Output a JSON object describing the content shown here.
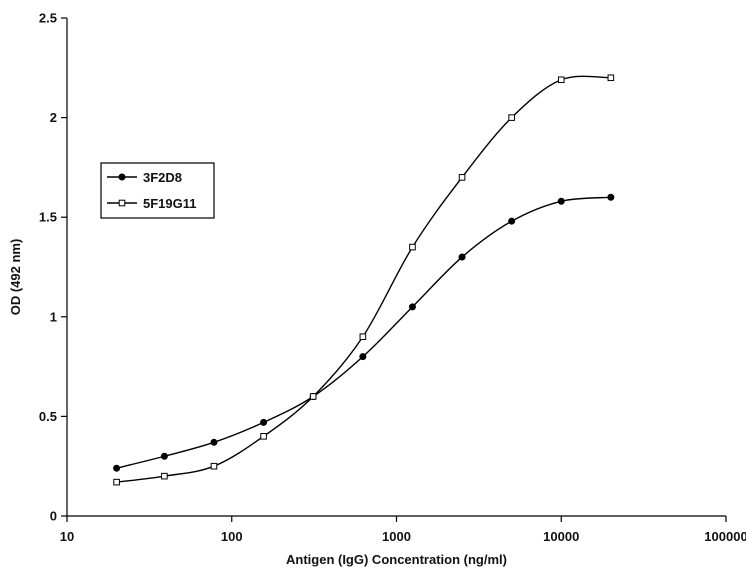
{
  "chart_data": {
    "type": "line",
    "x_scale": "log",
    "xlim": [
      10,
      100000
    ],
    "ylim": [
      0,
      2.5
    ],
    "x_ticks": [
      "10",
      "100",
      "1000",
      "10000",
      "100000"
    ],
    "y_ticks": [
      "0",
      "0.5",
      "1",
      "1.5",
      "2",
      "2.5"
    ],
    "xlabel": "Antigen (IgG) Concentration (ng/ml)",
    "ylabel": "OD (492 nm)",
    "grid": false,
    "legend_placement": "left",
    "series": [
      {
        "name": "3F2D8",
        "marker": "filled-circle",
        "color": "#000000",
        "x": [
          20,
          39,
          78,
          156,
          312,
          625,
          1250,
          2500,
          5000,
          10000,
          20000
        ],
        "y": [
          0.24,
          0.3,
          0.37,
          0.47,
          0.6,
          0.8,
          1.05,
          1.3,
          1.48,
          1.58,
          1.6
        ]
      },
      {
        "name": "5F19G11",
        "marker": "open-square",
        "color": "#000000",
        "x": [
          20,
          39,
          78,
          156,
          312,
          625,
          1250,
          2500,
          5000,
          10000,
          20000
        ],
        "y": [
          0.17,
          0.2,
          0.25,
          0.4,
          0.6,
          0.9,
          1.35,
          1.7,
          2.0,
          2.19,
          2.2
        ]
      }
    ]
  }
}
